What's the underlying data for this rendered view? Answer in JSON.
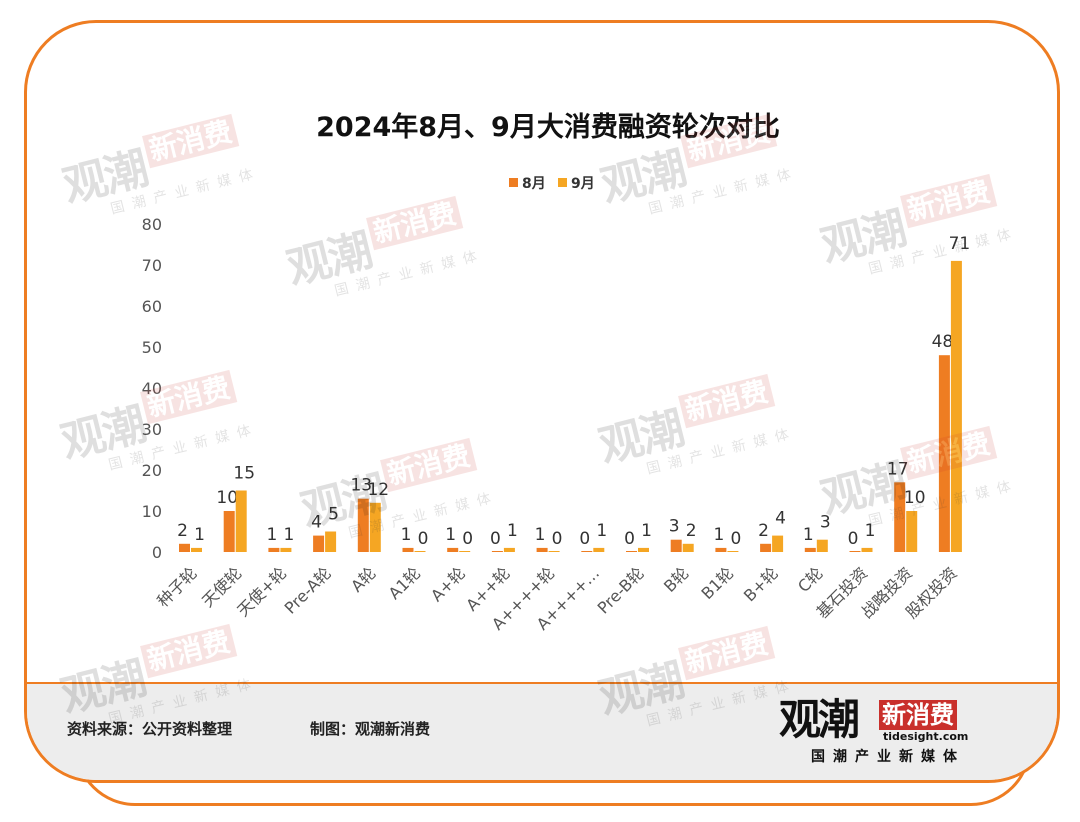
{
  "chart_data": {
    "type": "bar",
    "title": "2024年8月、9月大消费融资轮次对比",
    "categories": [
      "种子轮",
      "天使轮",
      "天使+轮",
      "Pre-A轮",
      "A轮",
      "A1轮",
      "A+轮",
      "A++轮",
      "A++++轮",
      "A++++…",
      "Pre-B轮",
      "B轮",
      "B1轮",
      "B+轮",
      "C轮",
      "基石投资",
      "战略投资",
      "股权投资"
    ],
    "series": [
      {
        "name": "8月",
        "color": "#ee7d22",
        "values": [
          2,
          10,
          1,
          4,
          13,
          1,
          1,
          0,
          1,
          0,
          0,
          3,
          1,
          2,
          1,
          0,
          17,
          48
        ]
      },
      {
        "name": "9月",
        "color": "#f5a623",
        "values": [
          1,
          15,
          1,
          5,
          12,
          0,
          0,
          1,
          0,
          1,
          1,
          2,
          0,
          4,
          3,
          1,
          10,
          71
        ]
      }
    ],
    "ylim": [
      0,
      80
    ],
    "yticks": [
      "0",
      "10",
      "20",
      "30",
      "40",
      "50",
      "60",
      "70",
      "80"
    ],
    "legend": "top-center",
    "grid": false
  },
  "footer": {
    "source": "资料来源：公开资料整理",
    "maker": "制图：观潮新消费",
    "logo_main": "观潮",
    "logo_red": "新消费",
    "logo_site": "tidesight.com",
    "logo_sub": "国潮产业新媒体"
  },
  "watermark": {
    "main": "观潮",
    "red": "新消费",
    "sub": "国潮产业新媒体"
  }
}
